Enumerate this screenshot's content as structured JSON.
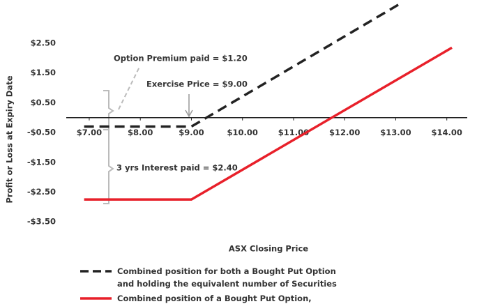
{
  "chart_data": {
    "type": "line",
    "y_label": "Profit or Loss at Expiry Date",
    "x_label": "ASX Closing Price",
    "annotations": [
      "Option Premium paid = $1.20",
      "Exercise Price = $9.00",
      "3 yrs Interest paid = $2.40"
    ],
    "xlim": [
      6.55,
      14.4
    ],
    "ylim": [
      -3.8,
      3.95
    ],
    "xticks": [
      {
        "value": 7,
        "label": "$7.00"
      },
      {
        "value": 8,
        "label": "$8.00"
      },
      {
        "value": 9,
        "label": "$9.00"
      },
      {
        "value": 10,
        "label": "$10.00"
      },
      {
        "value": 11,
        "label": "$11.00"
      },
      {
        "value": 12,
        "label": "$12.00"
      },
      {
        "value": 13,
        "label": "$13.00"
      },
      {
        "value": 14,
        "label": "$14.00"
      }
    ],
    "yticks": [
      {
        "value": 2.5,
        "label": "$2.50"
      },
      {
        "value": 1.5,
        "label": "$1.50"
      },
      {
        "value": 0.5,
        "label": "$0.50"
      },
      {
        "value": -0.5,
        "label": "-$0.50"
      },
      {
        "value": -1.5,
        "label": "-$1.50"
      },
      {
        "value": -2.5,
        "label": "-$2.50"
      },
      {
        "value": -3.5,
        "label": "-$3.50"
      }
    ],
    "series": [
      {
        "name": "Combined position for both a Bought Put Option and holding the equivalent number of Securities",
        "color": "#222222",
        "dashed": true,
        "x": [
          6.9,
          9.0,
          13.1
        ],
        "values": [
          -0.3,
          -0.3,
          3.84
        ]
      },
      {
        "name": "Combined position of a Bought Put Option, Securities and Loan",
        "color": "#e8202a",
        "dashed": false,
        "x": [
          6.9,
          9.0,
          14.1
        ],
        "values": [
          -2.75,
          -2.75,
          2.35
        ]
      }
    ]
  }
}
